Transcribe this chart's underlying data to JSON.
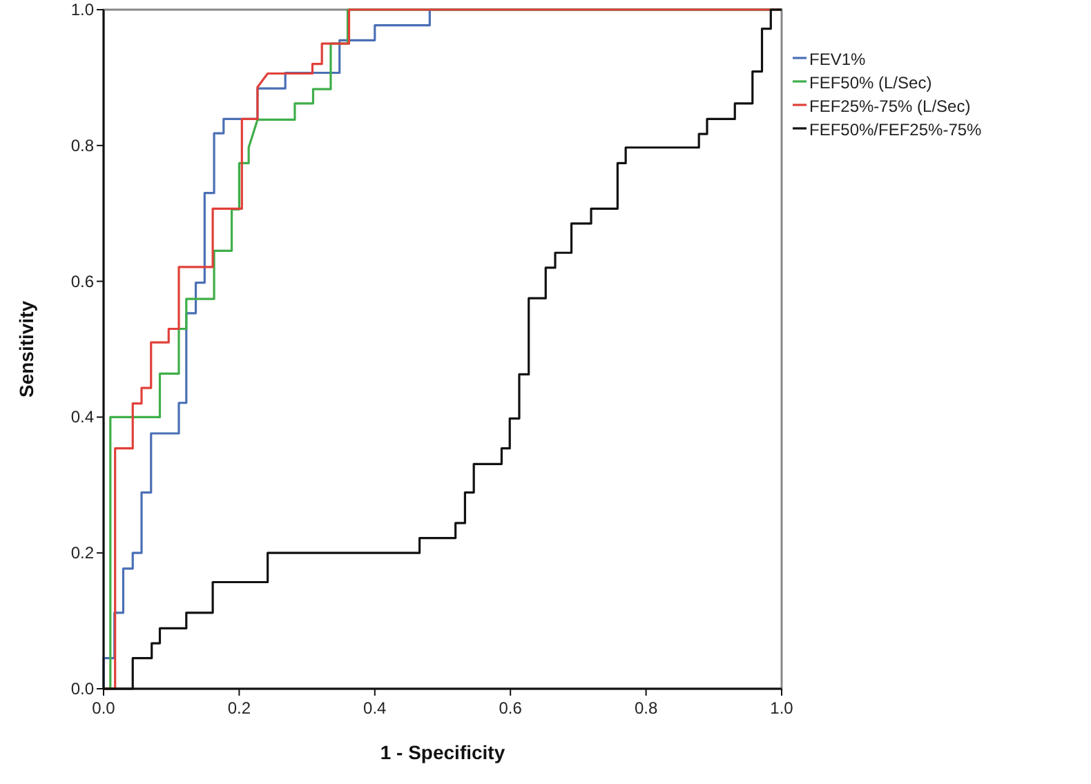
{
  "chart_data": {
    "type": "line",
    "xlabel": "1 - Specificity",
    "ylabel": "Sensitivity",
    "xlim": [
      0,
      1
    ],
    "ylim": [
      0,
      1
    ],
    "xticks": [
      {
        "value": 0,
        "label": "0.0"
      },
      {
        "value": 0.2,
        "label": "0.2"
      },
      {
        "value": 0.4,
        "label": "0.4"
      },
      {
        "value": 0.6,
        "label": "0.6"
      },
      {
        "value": 0.8,
        "label": "0.8"
      },
      {
        "value": 1,
        "label": "1.0"
      }
    ],
    "yticks": [
      {
        "value": 0,
        "label": "0.0"
      },
      {
        "value": 0.2,
        "label": "0.2"
      },
      {
        "value": 0.4,
        "label": "0.4"
      },
      {
        "value": 0.6,
        "label": "0.6"
      },
      {
        "value": 0.8,
        "label": "0.8"
      },
      {
        "value": 1,
        "label": "1.0"
      }
    ],
    "grid": false,
    "legend": "right",
    "marker": "none",
    "line_style": "solid",
    "series": [
      {
        "name": "FEV1%",
        "color": "#4a6fb5",
        "x": [
          0,
          0,
          0.016,
          0.016,
          0.029,
          0.029,
          0.043,
          0.043,
          0.056,
          0.056,
          0.07,
          0.07,
          0.111,
          0.111,
          0.122,
          0.122,
          0.136,
          0.136,
          0.149,
          0.149,
          0.163,
          0.163,
          0.177,
          0.177,
          0.227,
          0.227,
          0.268,
          0.268,
          0.348,
          0.348,
          0.4,
          0.4,
          0.481,
          0.481,
          1
        ],
        "values": [
          0,
          0.045,
          0.045,
          0.112,
          0.112,
          0.177,
          0.177,
          0.2,
          0.2,
          0.289,
          0.289,
          0.376,
          0.376,
          0.421,
          0.421,
          0.553,
          0.553,
          0.598,
          0.598,
          0.73,
          0.73,
          0.818,
          0.818,
          0.839,
          0.839,
          0.884,
          0.884,
          0.907,
          0.907,
          0.955,
          0.955,
          0.977,
          0.977,
          1,
          1
        ]
      },
      {
        "name": "FEF50% (L/Sec)",
        "color": "#3fae49",
        "x": [
          0,
          0.01,
          0.01,
          0.083,
          0.083,
          0.111,
          0.111,
          0.122,
          0.122,
          0.163,
          0.163,
          0.189,
          0.189,
          0.2,
          0.2,
          0.214,
          0.214,
          0.227,
          0.227,
          0.282,
          0.282,
          0.309,
          0.309,
          0.335,
          0.335,
          0.36,
          0.36,
          1
        ],
        "values": [
          0,
          0,
          0.4,
          0.4,
          0.464,
          0.464,
          0.53,
          0.53,
          0.574,
          0.574,
          0.645,
          0.645,
          0.706,
          0.706,
          0.774,
          0.774,
          0.797,
          0.838,
          0.838,
          0.838,
          0.862,
          0.862,
          0.883,
          0.883,
          0.95,
          0.95,
          1,
          1
        ]
      },
      {
        "name": "FEF25%-75% (L/Sec)",
        "color": "#e0403a",
        "x": [
          0,
          0.017,
          0.017,
          0.043,
          0.043,
          0.056,
          0.056,
          0.07,
          0.07,
          0.096,
          0.096,
          0.111,
          0.111,
          0.161,
          0.161,
          0.204,
          0.204,
          0.227,
          0.227,
          0.242,
          0.242,
          0.308,
          0.308,
          0.322,
          0.322,
          0.362,
          0.362,
          1
        ],
        "values": [
          0,
          0,
          0.354,
          0.354,
          0.42,
          0.42,
          0.443,
          0.443,
          0.51,
          0.51,
          0.53,
          0.53,
          0.621,
          0.621,
          0.707,
          0.707,
          0.839,
          0.839,
          0.886,
          0.906,
          0.906,
          0.906,
          0.92,
          0.92,
          0.95,
          0.95,
          1,
          1
        ]
      },
      {
        "name": "FEF50%/FEF25%-75%",
        "color": "#111111",
        "x": [
          0,
          0.043,
          0.043,
          0.071,
          0.071,
          0.083,
          0.083,
          0.122,
          0.122,
          0.161,
          0.161,
          0.242,
          0.242,
          0.466,
          0.466,
          0.519,
          0.519,
          0.533,
          0.533,
          0.546,
          0.546,
          0.587,
          0.587,
          0.599,
          0.599,
          0.613,
          0.613,
          0.627,
          0.627,
          0.652,
          0.652,
          0.666,
          0.666,
          0.69,
          0.69,
          0.719,
          0.719,
          0.758,
          0.758,
          0.77,
          0.77,
          0.878,
          0.878,
          0.89,
          0.89,
          0.931,
          0.931,
          0.957,
          0.957,
          0.971,
          0.971,
          0.984,
          0.984,
          1
        ],
        "values": [
          0,
          0,
          0.045,
          0.045,
          0.067,
          0.067,
          0.089,
          0.089,
          0.112,
          0.112,
          0.157,
          0.157,
          0.2,
          0.2,
          0.222,
          0.222,
          0.244,
          0.244,
          0.289,
          0.289,
          0.331,
          0.331,
          0.354,
          0.354,
          0.398,
          0.398,
          0.463,
          0.463,
          0.575,
          0.575,
          0.62,
          0.62,
          0.642,
          0.642,
          0.685,
          0.685,
          0.707,
          0.707,
          0.774,
          0.774,
          0.797,
          0.797,
          0.817,
          0.817,
          0.839,
          0.839,
          0.862,
          0.862,
          0.909,
          0.909,
          0.972,
          0.972,
          1,
          1
        ]
      }
    ]
  }
}
